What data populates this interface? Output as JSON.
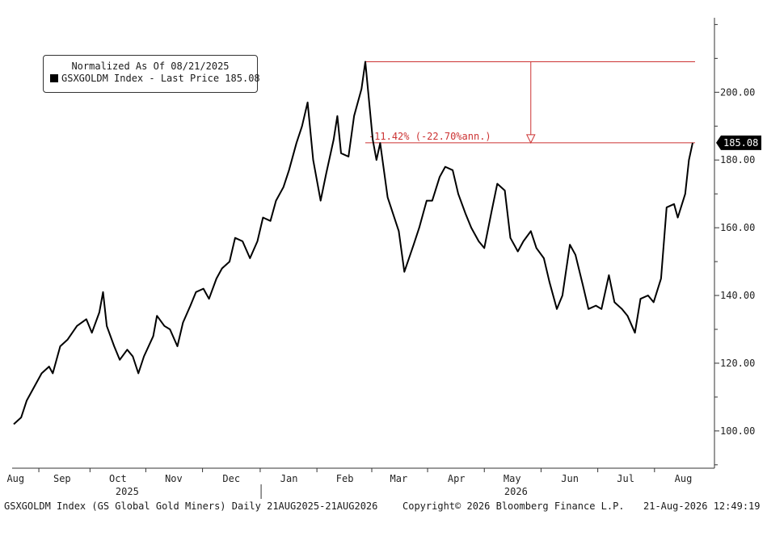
{
  "legend": {
    "normalized_note": "Normalized As Of 08/21/2025",
    "series_label": "GSXGOLDM Index - Last Price 185.08"
  },
  "footer": {
    "left": "GSXGOLDM Index (GS Global Gold Miners) Daily 21AUG2025-21AUG2026",
    "center": "Copyright© 2026 Bloomberg Finance L.P.",
    "right": "21-Aug-2026 12:49:19"
  },
  "colors": {
    "line": "#000000",
    "annotation": "#cc3333",
    "last_price_tag_bg": "#000000",
    "last_price_tag_text": "#ffffff"
  },
  "chart_data": {
    "type": "line",
    "series": [
      {
        "name": "GSXGOLDM Index - Last Price",
        "points": [
          [
            "2025-08-21",
            102
          ],
          [
            "2025-08-25",
            104
          ],
          [
            "2025-08-28",
            109
          ],
          [
            "2025-09-02",
            114
          ],
          [
            "2025-09-05",
            117
          ],
          [
            "2025-09-09",
            119
          ],
          [
            "2025-09-11",
            117
          ],
          [
            "2025-09-15",
            125
          ],
          [
            "2025-09-19",
            127
          ],
          [
            "2025-09-24",
            131
          ],
          [
            "2025-09-29",
            133
          ],
          [
            "2025-10-02",
            129
          ],
          [
            "2025-10-06",
            135
          ],
          [
            "2025-10-08",
            141
          ],
          [
            "2025-10-10",
            131
          ],
          [
            "2025-10-14",
            125
          ],
          [
            "2025-10-17",
            121
          ],
          [
            "2025-10-21",
            124
          ],
          [
            "2025-10-24",
            122
          ],
          [
            "2025-10-27",
            117
          ],
          [
            "2025-10-30",
            122
          ],
          [
            "2025-11-04",
            128
          ],
          [
            "2025-11-06",
            134
          ],
          [
            "2025-11-10",
            131
          ],
          [
            "2025-11-13",
            130
          ],
          [
            "2025-11-17",
            125
          ],
          [
            "2025-11-20",
            132
          ],
          [
            "2025-11-24",
            137
          ],
          [
            "2025-11-27",
            141
          ],
          [
            "2025-12-01",
            142
          ],
          [
            "2025-12-04",
            139
          ],
          [
            "2025-12-08",
            145
          ],
          [
            "2025-12-11",
            148
          ],
          [
            "2025-12-15",
            150
          ],
          [
            "2025-12-18",
            157
          ],
          [
            "2025-12-22",
            156
          ],
          [
            "2025-12-26",
            151
          ],
          [
            "2025-12-30",
            156
          ],
          [
            "2026-01-02",
            163
          ],
          [
            "2026-01-06",
            162
          ],
          [
            "2026-01-09",
            168
          ],
          [
            "2026-01-13",
            172
          ],
          [
            "2026-01-16",
            177
          ],
          [
            "2026-01-20",
            185
          ],
          [
            "2026-01-23",
            190
          ],
          [
            "2026-01-26",
            197
          ],
          [
            "2026-01-29",
            180
          ],
          [
            "2026-02-02",
            168
          ],
          [
            "2026-02-05",
            176
          ],
          [
            "2026-02-09",
            186
          ],
          [
            "2026-02-11",
            193
          ],
          [
            "2026-02-13",
            182
          ],
          [
            "2026-02-17",
            181
          ],
          [
            "2026-02-20",
            193
          ],
          [
            "2026-02-24",
            201
          ],
          [
            "2026-02-26",
            209
          ],
          [
            "2026-03-02",
            186
          ],
          [
            "2026-03-04",
            180
          ],
          [
            "2026-03-06",
            185
          ],
          [
            "2026-03-10",
            169
          ],
          [
            "2026-03-16",
            159
          ],
          [
            "2026-03-19",
            147
          ],
          [
            "2026-03-24",
            155
          ],
          [
            "2026-03-27",
            160
          ],
          [
            "2026-03-31",
            168
          ],
          [
            "2026-04-03",
            168
          ],
          [
            "2026-04-07",
            175
          ],
          [
            "2026-04-10",
            178
          ],
          [
            "2026-04-14",
            177
          ],
          [
            "2026-04-17",
            170
          ],
          [
            "2026-04-21",
            164
          ],
          [
            "2026-04-24",
            160
          ],
          [
            "2026-04-28",
            156
          ],
          [
            "2026-05-01",
            154
          ],
          [
            "2026-05-05",
            165
          ],
          [
            "2026-05-08",
            173
          ],
          [
            "2026-05-12",
            171
          ],
          [
            "2026-05-15",
            157
          ],
          [
            "2026-05-19",
            153
          ],
          [
            "2026-05-22",
            156
          ],
          [
            "2026-05-26",
            159
          ],
          [
            "2026-05-29",
            154
          ],
          [
            "2026-06-02",
            151
          ],
          [
            "2026-06-05",
            144
          ],
          [
            "2026-06-09",
            136
          ],
          [
            "2026-06-12",
            140
          ],
          [
            "2026-06-16",
            155
          ],
          [
            "2026-06-19",
            152
          ],
          [
            "2026-06-23",
            143
          ],
          [
            "2026-06-26",
            136
          ],
          [
            "2026-06-30",
            137
          ],
          [
            "2026-07-03",
            136
          ],
          [
            "2026-07-07",
            146
          ],
          [
            "2026-07-10",
            138
          ],
          [
            "2026-07-14",
            136
          ],
          [
            "2026-07-17",
            134
          ],
          [
            "2026-07-21",
            129
          ],
          [
            "2026-07-24",
            139
          ],
          [
            "2026-07-28",
            140
          ],
          [
            "2026-07-31",
            138
          ],
          [
            "2026-08-04",
            145
          ],
          [
            "2026-08-07",
            166
          ],
          [
            "2026-08-11",
            167
          ],
          [
            "2026-08-13",
            163
          ],
          [
            "2026-08-17",
            170
          ],
          [
            "2026-08-19",
            180
          ],
          [
            "2026-08-21",
            185.08
          ]
        ]
      }
    ],
    "y_axis": {
      "position": "right",
      "ticks": [
        100,
        120,
        140,
        160,
        180,
        200
      ],
      "tick_labels": [
        "100.00",
        "120.00",
        "140.00",
        "160.00",
        "180.00",
        "200.00"
      ],
      "ylim": [
        89,
        222
      ]
    },
    "x_axis": {
      "xlim": [
        "2025-08-21",
        "2026-08-31"
      ],
      "month_ticks": [
        {
          "label": "Aug",
          "date": "2025-08-22"
        },
        {
          "label": "Sep",
          "date": "2025-09-16"
        },
        {
          "label": "Oct",
          "date": "2025-10-16"
        },
        {
          "label": "Nov",
          "date": "2025-11-15"
        },
        {
          "label": "Dec",
          "date": "2025-12-16"
        },
        {
          "label": "Jan",
          "date": "2026-01-16"
        },
        {
          "label": "Feb",
          "date": "2026-02-15"
        },
        {
          "label": "Mar",
          "date": "2026-03-16"
        },
        {
          "label": "Apr",
          "date": "2026-04-16"
        },
        {
          "label": "May",
          "date": "2026-05-16"
        },
        {
          "label": "Jun",
          "date": "2026-06-16"
        },
        {
          "label": "Jul",
          "date": "2026-07-16"
        },
        {
          "label": "Aug",
          "date": "2026-08-16"
        }
      ],
      "years": [
        {
          "label": "2025",
          "date": "2025-10-21"
        },
        {
          "label": "2026",
          "date": "2026-05-18"
        }
      ],
      "year_divider": "2026-01-01"
    },
    "last_price_label": "185.08",
    "drawdown_annotation": {
      "text": "-11.42% (-22.70%ann.)",
      "peak_value": 209,
      "last_value": 185.08,
      "start_date": "2026-02-26",
      "arrow_date": "2026-05-26"
    },
    "grid": false,
    "legend": "top-left"
  }
}
